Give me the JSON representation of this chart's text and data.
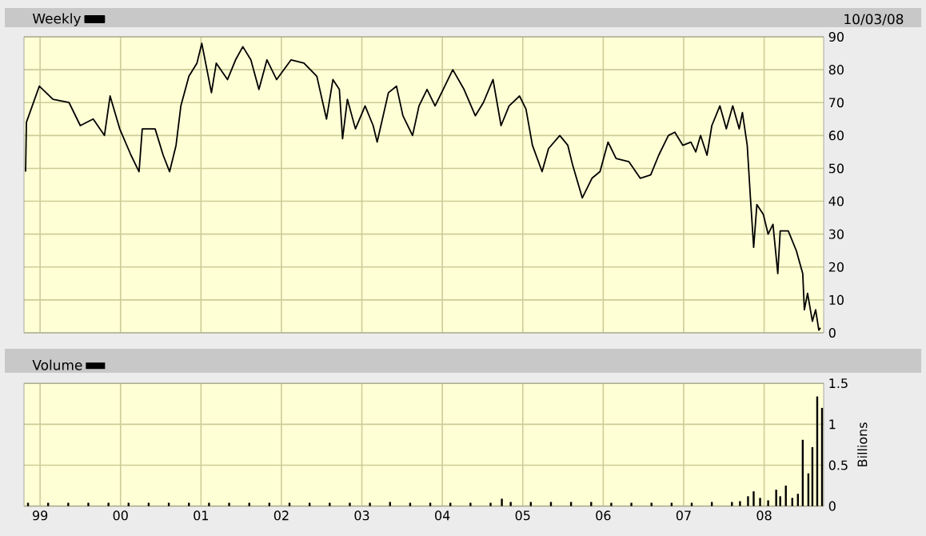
{
  "chart_data": [
    {
      "type": "line",
      "annotations": [
        "10/03/08"
      ],
      "x": [
        1998.82,
        1998.83,
        1998.99,
        1999.16,
        1999.36,
        1999.5,
        1999.66,
        1999.8,
        1999.87,
        1999.99,
        2000.13,
        2000.23,
        2000.27,
        2000.43,
        2000.53,
        2000.61,
        2000.69,
        2000.75,
        2000.85,
        2000.95,
        2001.01,
        2001.13,
        2001.19,
        2001.33,
        2001.43,
        2001.52,
        2001.62,
        2001.72,
        2001.82,
        2001.94,
        2002.12,
        2002.28,
        2002.44,
        2002.56,
        2002.64,
        2002.72,
        2002.76,
        2002.82,
        2002.92,
        2003.04,
        2003.14,
        2003.19,
        2003.33,
        2003.43,
        2003.51,
        2003.63,
        2003.71,
        2003.81,
        2003.91,
        2004.01,
        2004.13,
        2004.27,
        2004.41,
        2004.51,
        2004.63,
        2004.73,
        2004.83,
        2004.96,
        2005.04,
        2005.12,
        2005.24,
        2005.32,
        2005.46,
        2005.56,
        2005.62,
        2005.74,
        2005.86,
        2005.96,
        2006.06,
        2006.16,
        2006.32,
        2006.46,
        2006.59,
        2006.69,
        2006.81,
        2006.89,
        2006.99,
        2007.09,
        2007.15,
        2007.21,
        2007.29,
        2007.35,
        2007.45,
        2007.53,
        2007.61,
        2007.69,
        2007.73,
        2007.79,
        2007.83,
        2007.87,
        2007.91,
        2007.99,
        2008.05,
        2008.11,
        2008.17,
        2008.2,
        2008.3,
        2008.4,
        2008.48,
        2008.5,
        2008.54,
        2008.6,
        2008.64,
        2008.68,
        2008.7
      ],
      "series": [
        {
          "name": "Weekly",
          "color": "#000000",
          "values": [
            49,
            64,
            75,
            71,
            70,
            63,
            65,
            60,
            72,
            62,
            54,
            49,
            62,
            62,
            54,
            49,
            57,
            69,
            78,
            82,
            88,
            73,
            82,
            77,
            83,
            87,
            83,
            74,
            83,
            77,
            83,
            82,
            78,
            65,
            77,
            74,
            59,
            71,
            62,
            69,
            63,
            58,
            73,
            75,
            66,
            60,
            69,
            74,
            69,
            74,
            80,
            74,
            66,
            70,
            77,
            63,
            69,
            72,
            68,
            57,
            49,
            56,
            60,
            57,
            51,
            41,
            47,
            49,
            58,
            53,
            52,
            47,
            48,
            54,
            60,
            61,
            57,
            58,
            55,
            60,
            54,
            63,
            69,
            62,
            69,
            62,
            67,
            57,
            41,
            26,
            39,
            36,
            30,
            33,
            18,
            31,
            31,
            25,
            18,
            7,
            12,
            3.5,
            7,
            0.8,
            1.5
          ]
        }
      ],
      "xlim": [
        1998.8,
        2008.74
      ],
      "ylim": [
        0,
        90
      ],
      "xticks": [
        {
          "value": 1999,
          "label": null
        },
        {
          "value": 2000,
          "label": null
        },
        {
          "value": 2001,
          "label": null
        },
        {
          "value": 2002,
          "label": null
        },
        {
          "value": 2003,
          "label": null
        },
        {
          "value": 2004,
          "label": null
        },
        {
          "value": 2005,
          "label": null
        },
        {
          "value": 2006,
          "label": null
        },
        {
          "value": 2007,
          "label": null
        },
        {
          "value": 2008,
          "label": null
        }
      ],
      "yticks": [
        0,
        10,
        20,
        30,
        40,
        50,
        60,
        70,
        80,
        90
      ],
      "tick_labels": "y",
      "grid": true,
      "legend": "top left"
    },
    {
      "type": "bar",
      "ylabel": "Billions",
      "x": [
        1998.85,
        1999.1,
        1999.35,
        1999.6,
        1999.85,
        2000.1,
        2000.35,
        2000.6,
        2000.85,
        2001.1,
        2001.35,
        2001.6,
        2001.85,
        2002.1,
        2002.35,
        2002.6,
        2002.85,
        2003.1,
        2003.35,
        2003.6,
        2003.85,
        2004.1,
        2004.35,
        2004.6,
        2004.74,
        2004.85,
        2005.1,
        2005.35,
        2005.6,
        2005.85,
        2006.1,
        2006.35,
        2006.6,
        2006.85,
        2007.1,
        2007.35,
        2007.6,
        2007.7,
        2007.8,
        2007.87,
        2007.95,
        2008.05,
        2008.15,
        2008.2,
        2008.27,
        2008.35,
        2008.42,
        2008.48,
        2008.55,
        2008.6,
        2008.66,
        2008.72
      ],
      "series": [
        {
          "name": "Volume",
          "color": "#000000",
          "values": [
            0.04,
            0.04,
            0.04,
            0.04,
            0.04,
            0.04,
            0.04,
            0.04,
            0.04,
            0.04,
            0.04,
            0.04,
            0.04,
            0.04,
            0.04,
            0.04,
            0.04,
            0.04,
            0.05,
            0.04,
            0.04,
            0.04,
            0.04,
            0.04,
            0.09,
            0.05,
            0.05,
            0.05,
            0.05,
            0.05,
            0.04,
            0.04,
            0.04,
            0.04,
            0.04,
            0.05,
            0.05,
            0.06,
            0.12,
            0.18,
            0.1,
            0.07,
            0.2,
            0.12,
            0.25,
            0.1,
            0.15,
            0.81,
            0.4,
            0.72,
            1.34,
            1.2
          ]
        }
      ],
      "xlim": [
        1998.8,
        2008.74
      ],
      "ylim": [
        0,
        1.5
      ],
      "xticks": [
        {
          "value": 1999,
          "label": "99"
        },
        {
          "value": 2000,
          "label": "00"
        },
        {
          "value": 2001,
          "label": "01"
        },
        {
          "value": 2002,
          "label": "02"
        },
        {
          "value": 2003,
          "label": "03"
        },
        {
          "value": 2004,
          "label": "04"
        },
        {
          "value": 2005,
          "label": "05"
        },
        {
          "value": 2006,
          "label": "06"
        },
        {
          "value": 2007,
          "label": "07"
        },
        {
          "value": 2008,
          "label": "08"
        }
      ],
      "yticks": [
        0,
        0.5,
        1,
        1.5
      ],
      "grid": true,
      "legend": "top left"
    }
  ]
}
